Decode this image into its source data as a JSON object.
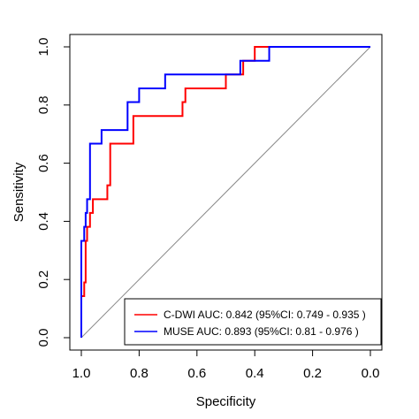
{
  "chart_data": {
    "type": "line",
    "title": "",
    "xlabel": "Specificity",
    "ylabel": "Sensitivity",
    "x_reversed": true,
    "xlim": [
      1.0,
      0.0
    ],
    "ylim": [
      0.0,
      1.0
    ],
    "x_ticks": [
      1.0,
      0.8,
      0.6,
      0.4,
      0.2,
      0.0
    ],
    "x_tick_labels": [
      "1.0",
      "0.8",
      "0.6",
      "0.4",
      "0.2",
      "0.0"
    ],
    "y_ticks": [
      0.0,
      0.2,
      0.4,
      0.6,
      0.8,
      1.0
    ],
    "y_tick_labels": [
      "0.0",
      "0.2",
      "0.4",
      "0.6",
      "0.8",
      "1.0"
    ],
    "grid": false,
    "legend_position": "bottom-right",
    "reference_line": {
      "from": [
        1.0,
        0.0
      ],
      "to": [
        0.0,
        1.0
      ],
      "color": "#888888"
    },
    "series": [
      {
        "name": "C-DWI AUC: 0.842 (95%CI: 0.749 - 0.935 )",
        "color": "#ff0000",
        "points": [
          [
            1.0,
            0.0
          ],
          [
            1.0,
            0.143
          ],
          [
            0.99,
            0.143
          ],
          [
            0.99,
            0.19
          ],
          [
            0.985,
            0.19
          ],
          [
            0.985,
            0.333
          ],
          [
            0.98,
            0.333
          ],
          [
            0.98,
            0.381
          ],
          [
            0.97,
            0.381
          ],
          [
            0.97,
            0.429
          ],
          [
            0.96,
            0.429
          ],
          [
            0.96,
            0.476
          ],
          [
            0.91,
            0.476
          ],
          [
            0.91,
            0.524
          ],
          [
            0.9,
            0.524
          ],
          [
            0.9,
            0.667
          ],
          [
            0.82,
            0.667
          ],
          [
            0.82,
            0.762
          ],
          [
            0.65,
            0.762
          ],
          [
            0.65,
            0.81
          ],
          [
            0.64,
            0.81
          ],
          [
            0.64,
            0.857
          ],
          [
            0.5,
            0.857
          ],
          [
            0.5,
            0.905
          ],
          [
            0.44,
            0.905
          ],
          [
            0.44,
            0.952
          ],
          [
            0.4,
            0.952
          ],
          [
            0.4,
            1.0
          ],
          [
            0.0,
            1.0
          ]
        ]
      },
      {
        "name": "MUSE AUC: 0.893 (95%CI: 0.81 - 0.976 )",
        "color": "#0000ff",
        "points": [
          [
            1.0,
            0.0
          ],
          [
            1.0,
            0.333
          ],
          [
            0.99,
            0.333
          ],
          [
            0.99,
            0.381
          ],
          [
            0.985,
            0.381
          ],
          [
            0.985,
            0.429
          ],
          [
            0.98,
            0.429
          ],
          [
            0.98,
            0.476
          ],
          [
            0.97,
            0.476
          ],
          [
            0.97,
            0.667
          ],
          [
            0.93,
            0.667
          ],
          [
            0.93,
            0.714
          ],
          [
            0.84,
            0.714
          ],
          [
            0.84,
            0.81
          ],
          [
            0.8,
            0.81
          ],
          [
            0.8,
            0.857
          ],
          [
            0.71,
            0.857
          ],
          [
            0.71,
            0.905
          ],
          [
            0.45,
            0.905
          ],
          [
            0.45,
            0.952
          ],
          [
            0.35,
            0.952
          ],
          [
            0.35,
            1.0
          ],
          [
            0.0,
            1.0
          ]
        ]
      }
    ]
  }
}
